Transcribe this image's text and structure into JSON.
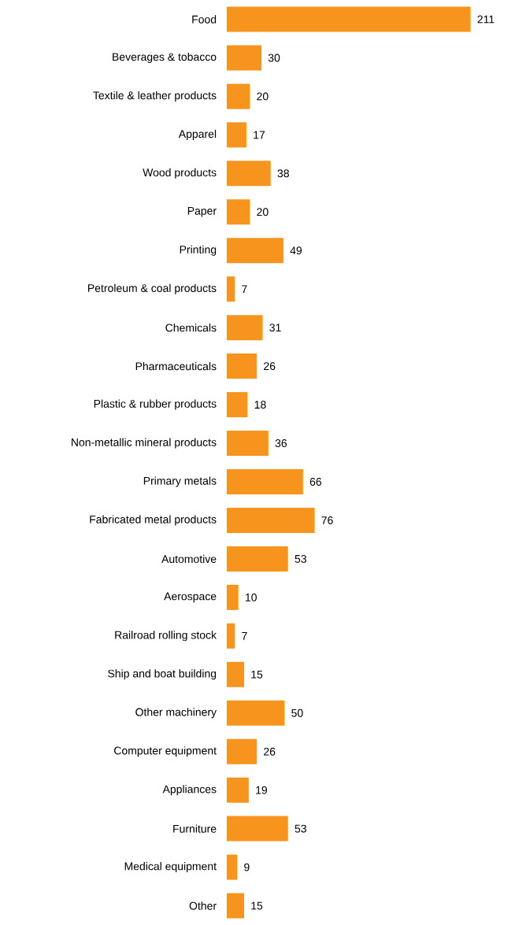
{
  "chart_data": {
    "type": "bar",
    "orientation": "horizontal",
    "data_labels": true,
    "color": "#f7941d",
    "categories": [
      "Food",
      "Beverages & tobacco",
      "Textile & leather products",
      "Apparel",
      "Wood products",
      "Paper",
      "Printing",
      "Petroleum & coal products",
      "Chemicals",
      "Pharmaceuticals",
      "Plastic & rubber products",
      "Non-metallic mineral products",
      "Primary metals",
      "Fabricated metal products",
      "Automotive",
      "Aerospace",
      "Railroad rolling stock",
      "Ship and boat building",
      "Other machinery",
      "Computer equipment",
      "Appliances",
      "Furniture",
      "Medical equipment",
      "Other"
    ],
    "values": [
      211,
      30,
      20,
      17,
      38,
      20,
      49,
      7,
      31,
      26,
      18,
      36,
      66,
      76,
      53,
      10,
      7,
      15,
      50,
      26,
      19,
      53,
      9,
      15
    ]
  }
}
